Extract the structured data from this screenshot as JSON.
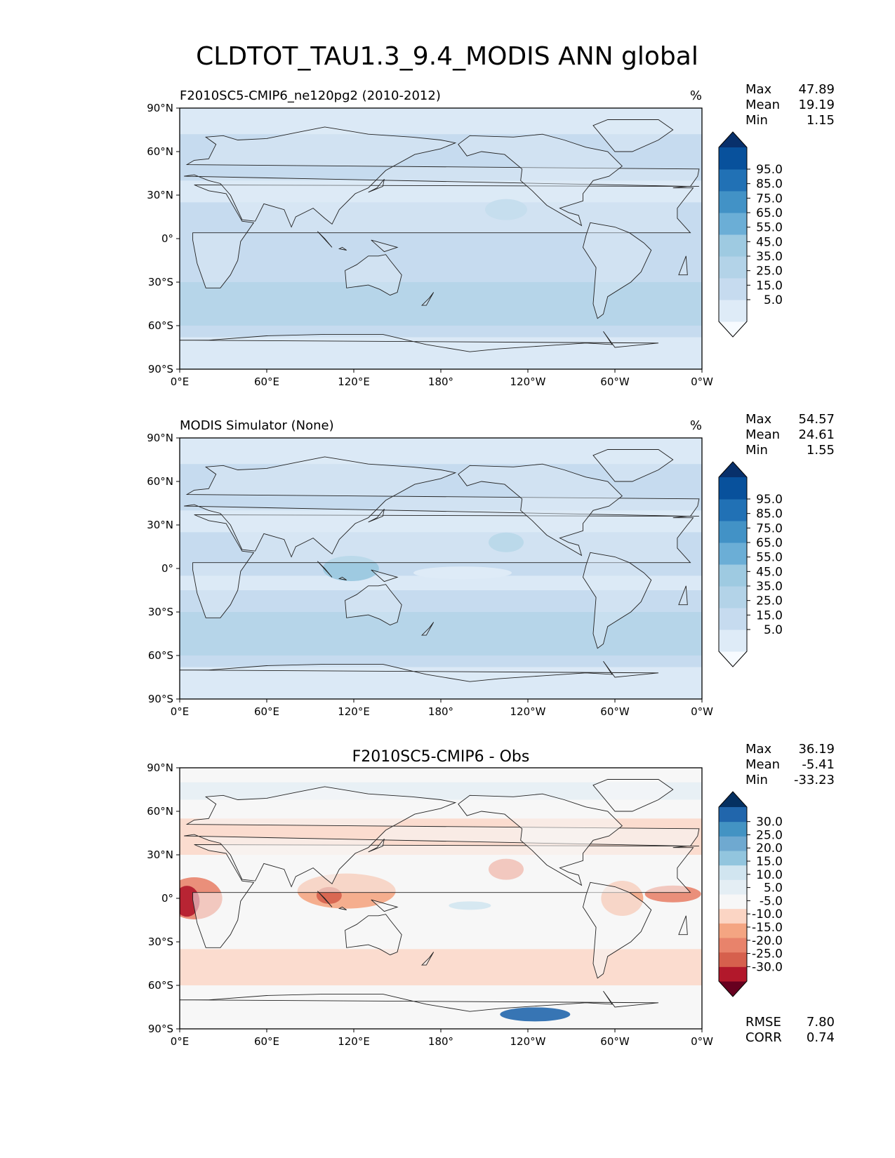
{
  "figure": {
    "title": "CLDTOT_TAU1.3_9.4_MODIS ANN global"
  },
  "chart_data": [
    {
      "type": "heatmap",
      "title": "F2010SC5-CMIP6_ne120pg2 (2010-2012)",
      "units": "%",
      "stats": [
        {
          "label": "Max",
          "value": "47.89"
        },
        {
          "label": "Mean",
          "value": "19.19"
        },
        {
          "label": "Min",
          "value": "1.15"
        }
      ],
      "x_ticks": [
        "0°E",
        "60°E",
        "120°E",
        "180°",
        "120°W",
        "60°W",
        "0°W"
      ],
      "y_ticks": [
        "90°N",
        "60°N",
        "30°N",
        "0°",
        "30°S",
        "60°S",
        "90°S"
      ],
      "colorbar": {
        "colors": [
          "#f7fbff",
          "#deebf7",
          "#c6dbef",
          "#b3d3e8",
          "#9ecae1",
          "#6baed6",
          "#4292c6",
          "#2171b5",
          "#08519c",
          "#08306b"
        ],
        "labels": [
          "95.0",
          "85.0",
          "75.0",
          "65.0",
          "55.0",
          "45.0",
          "35.0",
          "25.0",
          "15.0",
          "5.0"
        ]
      }
    },
    {
      "type": "heatmap",
      "title": "MODIS Simulator (None)",
      "units": "%",
      "stats": [
        {
          "label": "Max",
          "value": "54.57"
        },
        {
          "label": "Mean",
          "value": "24.61"
        },
        {
          "label": "Min",
          "value": "1.55"
        }
      ],
      "x_ticks": [
        "0°E",
        "60°E",
        "120°E",
        "180°",
        "120°W",
        "60°W",
        "0°W"
      ],
      "y_ticks": [
        "90°N",
        "60°N",
        "30°N",
        "0°",
        "30°S",
        "60°S",
        "90°S"
      ],
      "colorbar": {
        "colors": [
          "#f7fbff",
          "#deebf7",
          "#c6dbef",
          "#b3d3e8",
          "#9ecae1",
          "#6baed6",
          "#4292c6",
          "#2171b5",
          "#08519c",
          "#08306b"
        ],
        "labels": [
          "95.0",
          "85.0",
          "75.0",
          "65.0",
          "55.0",
          "45.0",
          "35.0",
          "25.0",
          "15.0",
          "5.0"
        ]
      }
    },
    {
      "type": "heatmap",
      "title": "F2010SC5-CMIP6 - Obs",
      "units": "",
      "stats": [
        {
          "label": "Max",
          "value": "36.19"
        },
        {
          "label": "Mean",
          "value": "-5.41"
        },
        {
          "label": "Min",
          "value": "-33.23"
        }
      ],
      "extra_stats": [
        {
          "label": "RMSE",
          "value": "7.80"
        },
        {
          "label": "CORR",
          "value": "0.74"
        }
      ],
      "x_ticks": [
        "0°E",
        "60°E",
        "120°E",
        "180°",
        "120°W",
        "60°W",
        "0°W"
      ],
      "y_ticks": [
        "90°N",
        "60°N",
        "30°N",
        "0°",
        "30°S",
        "60°S",
        "90°S"
      ],
      "colorbar": {
        "colors": [
          "#67001f",
          "#b2182b",
          "#d6604d",
          "#e8836b",
          "#f4a582",
          "#fbd5c4",
          "#f7f7f7",
          "#e4eef4",
          "#d1e5f0",
          "#92c5de",
          "#6fa9d0",
          "#4393c3",
          "#2166ac",
          "#053061"
        ],
        "labels": [
          "30.0",
          "25.0",
          "20.0",
          "15.0",
          "10.0",
          "5.0",
          "-5.0",
          "-10.0",
          "-15.0",
          "-20.0",
          "-25.0",
          "-30.0"
        ]
      }
    }
  ]
}
